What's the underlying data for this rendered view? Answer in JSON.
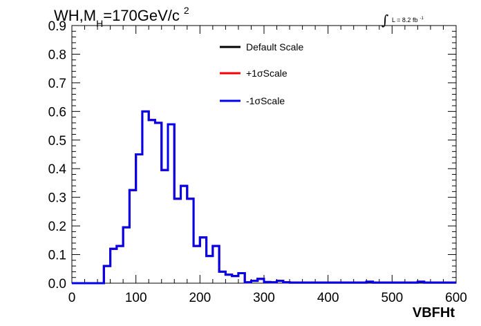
{
  "title": {
    "main": "WH,M",
    "sub": "H",
    "rest": "=170GeV/c",
    "sup": "2"
  },
  "luminosity": {
    "integral": "∫",
    "text": "L = 8.2 fb",
    "exp": "-1"
  },
  "chart_data": {
    "type": "line",
    "style": "step-histogram",
    "xlabel": "VBFHt",
    "ylabel": "",
    "xlim": [
      0,
      600
    ],
    "ylim": [
      0,
      0.9
    ],
    "x_ticks": [
      "0",
      "100",
      "200",
      "300",
      "400",
      "500",
      "600"
    ],
    "y_ticks": [
      "0.0",
      "0.1",
      "0.2",
      "0.3",
      "0.4",
      "0.5",
      "0.6",
      "0.7",
      "0.8",
      "0.9"
    ],
    "grid": false,
    "legend_position": "top-center",
    "bin_width": 10,
    "bin_edges": [
      0,
      10,
      20,
      30,
      40,
      50,
      60,
      70,
      80,
      90,
      100,
      110,
      120,
      130,
      140,
      150,
      160,
      170,
      180,
      190,
      200,
      210,
      220,
      230,
      240,
      250,
      260,
      270,
      280,
      290,
      300,
      310,
      320,
      330,
      340,
      350,
      360,
      370,
      380,
      390,
      400,
      410,
      420,
      430,
      440,
      450,
      460,
      470,
      480,
      490,
      500,
      510,
      520,
      530,
      540,
      550,
      560,
      570,
      580,
      590,
      600
    ],
    "series": [
      {
        "name": "Default Scale",
        "color": "#000000",
        "values": [
          0,
          0,
          0,
          0,
          0,
          0.06,
          0.12,
          0.13,
          0.195,
          0.325,
          0.45,
          0.6,
          0.57,
          0.56,
          0.395,
          0.555,
          0.295,
          0.34,
          0.295,
          0.13,
          0.16,
          0.095,
          0.13,
          0.04,
          0.03,
          0.025,
          0.035,
          0.003,
          0.008,
          0.015,
          0.004,
          0.003,
          0.008,
          0.003,
          0.002,
          0.002,
          0.002,
          0.002,
          0.002,
          0.002,
          0.002,
          0.002,
          0.002,
          0.002,
          0.002,
          0.002,
          0.005,
          0.002,
          0.002,
          0.002,
          0.002,
          0.002,
          0.002,
          0.002,
          0.005,
          0.002,
          0.002,
          0.002,
          0.002,
          0.002
        ]
      },
      {
        "name": "+1σScale",
        "color": "#ff0000",
        "values": [
          0,
          0,
          0,
          0,
          0,
          0.06,
          0.12,
          0.13,
          0.195,
          0.325,
          0.45,
          0.6,
          0.57,
          0.56,
          0.395,
          0.555,
          0.295,
          0.34,
          0.295,
          0.13,
          0.16,
          0.095,
          0.13,
          0.04,
          0.03,
          0.025,
          0.035,
          0.003,
          0.008,
          0.015,
          0.004,
          0.003,
          0.008,
          0.003,
          0.002,
          0.002,
          0.002,
          0.002,
          0.002,
          0.002,
          0.002,
          0.002,
          0.002,
          0.002,
          0.002,
          0.002,
          0.005,
          0.002,
          0.002,
          0.002,
          0.002,
          0.002,
          0.002,
          0.002,
          0.005,
          0.002,
          0.002,
          0.002,
          0.002,
          0.002
        ]
      },
      {
        "name": "-1σScale",
        "color": "#0000ee",
        "values": [
          0,
          0,
          0,
          0,
          0,
          0.06,
          0.12,
          0.13,
          0.195,
          0.325,
          0.45,
          0.6,
          0.57,
          0.56,
          0.395,
          0.555,
          0.295,
          0.34,
          0.295,
          0.13,
          0.16,
          0.095,
          0.13,
          0.04,
          0.03,
          0.025,
          0.035,
          0.003,
          0.008,
          0.015,
          0.004,
          0.003,
          0.008,
          0.003,
          0.002,
          0.002,
          0.002,
          0.002,
          0.002,
          0.002,
          0.002,
          0.002,
          0.002,
          0.002,
          0.002,
          0.002,
          0.005,
          0.002,
          0.002,
          0.002,
          0.002,
          0.002,
          0.002,
          0.002,
          0.005,
          0.002,
          0.002,
          0.002,
          0.002,
          0.002
        ]
      }
    ]
  }
}
